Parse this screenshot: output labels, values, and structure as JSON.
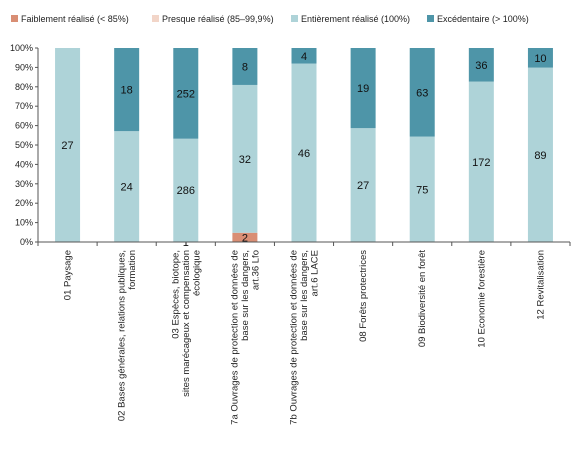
{
  "chart_data": {
    "type": "bar",
    "stacked": "percent",
    "categories": [
      "01 Paysage",
      "02 Bases générales, relations publiques, formation",
      "03 Espèces, biotope, sites marécageux et compensation écologique",
      "7a Ouvrages de protection et données de base sur les dangers, art.36 Lfo",
      "7b Ouvrages de protection et données de base sur les dangers, art.6 LACE",
      "08 Forêts protectrices",
      "09 Biodiversité en forêt",
      "10 Economie forestière",
      "12 Revitalisation"
    ],
    "category_lines": [
      [
        "01 Paysage"
      ],
      [
        "02 Bases générales, relations publiques,",
        "formation"
      ],
      [
        "03 Espèces, biotope,",
        "sites marécageux et compensation",
        "écologique"
      ],
      [
        "7a Ouvrages de protection et données de",
        "base sur les dangers,",
        "art.36 Lfo"
      ],
      [
        "7b Ouvrages de protection et données de",
        "base sur les dangers,",
        "art.6 LACE"
      ],
      [
        "08 Forêts protectrices"
      ],
      [
        "09 Biodiversité en forêt"
      ],
      [
        "10 Economie forestière"
      ],
      [
        "12 Revitalisation"
      ]
    ],
    "series": [
      {
        "name": "Faiblement réalisé (< 85%)",
        "color": "#d98e74",
        "values": [
          0,
          0,
          0,
          2,
          0,
          0,
          0,
          0,
          0
        ]
      },
      {
        "name": "Presque réalisé (85–99,9%)",
        "color": "#f2d5c8",
        "values": [
          0,
          0,
          1,
          0,
          0,
          0,
          0,
          0,
          0
        ]
      },
      {
        "name": "Entièrement réalisé  (100%)",
        "color": "#aed3d8",
        "values": [
          27,
          24,
          286,
          32,
          46,
          27,
          75,
          172,
          89
        ]
      },
      {
        "name": "Excédentaire (> 100%)",
        "color": "#4e95a8",
        "values": [
          0,
          18,
          252,
          8,
          4,
          19,
          63,
          36,
          10
        ]
      }
    ],
    "y_ticks": [
      "0%",
      "10%",
      "20%",
      "30%",
      "40%",
      "50%",
      "60%",
      "70%",
      "80%",
      "90%",
      "100%"
    ],
    "ylim": [
      0,
      100
    ],
    "grid": false,
    "legend_position": "top"
  }
}
